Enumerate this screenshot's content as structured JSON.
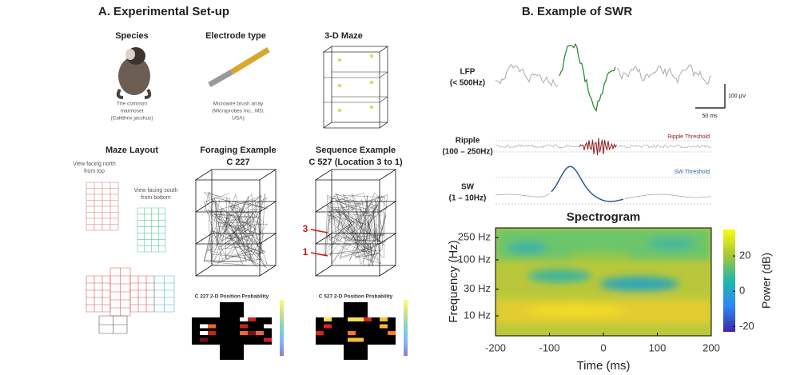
{
  "panel_a": {
    "title": "A. Experimental Set-up",
    "species": {
      "heading": "Species",
      "caption": [
        "The common",
        "marmoset",
        "(Callithrix jacchus)"
      ]
    },
    "electrode": {
      "heading": "Electrode type",
      "caption": [
        "Microwire brush array",
        "(Microprobes Inc., MD,",
        "USA)"
      ]
    },
    "maze": {
      "heading": "3-D Maze"
    },
    "layout": {
      "heading": "Maze Layout",
      "view_top": [
        "View facing north",
        "from top"
      ],
      "view_bottom": [
        "View facing south",
        "from bottom"
      ]
    },
    "foraging": {
      "heading": [
        "Foraging Example",
        "C 227"
      ],
      "map_title": "C 227 2-D Position Probability"
    },
    "sequence": {
      "heading": [
        "Sequence Example",
        "C 527 (Location 3 to 1)"
      ],
      "marker_start": "3",
      "marker_end": "1",
      "map_title": "C 527 2-D Position Probability"
    }
  },
  "panel_b": {
    "title": "B. Example of SWR",
    "lfp_label": [
      "LFP",
      "(< 500Hz)"
    ],
    "ripple_label": [
      "Ripple",
      "(100 – 250Hz)"
    ],
    "sw_label": [
      "SW",
      "(1 – 10Hz)"
    ],
    "ripple_threshold": "Ripple Threshold",
    "sw_threshold": "SW Threshold",
    "scale_amplitude": "100 µV",
    "scale_time": "50 ms"
  },
  "chart_data": {
    "type": "heatmap",
    "title": "Spectrogram",
    "x_label": "Time (ms)",
    "y_label": "Frequency (Hz)",
    "xlim": [
      -200,
      200
    ],
    "xticks": [
      -200,
      -100,
      0,
      100,
      200
    ],
    "y_scale": "log",
    "ylim": [
      4.4,
      372
    ],
    "yticks": [
      {
        "value": 10,
        "label": "10 Hz"
      },
      {
        "value": 30,
        "label": "30 Hz"
      },
      {
        "value": 100,
        "label": "100 Hz"
      },
      {
        "value": 250,
        "label": "250 Hz"
      }
    ],
    "colorbar": {
      "label": "Power (dB)",
      "lim": [
        -23,
        35
      ],
      "ticks": [
        20,
        0,
        -20
      ]
    }
  }
}
